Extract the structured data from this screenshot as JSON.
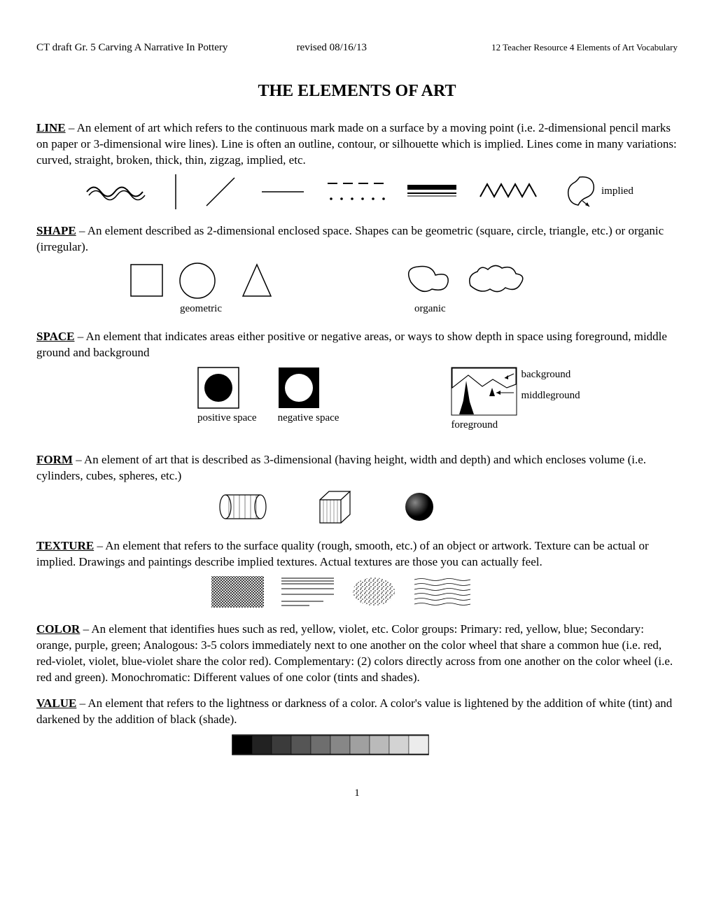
{
  "header": {
    "left": "CT draft Gr. 5 Carving A Narrative In Pottery",
    "mid": "revised 08/16/13",
    "right": "12 Teacher Resource 4 Elements of Art Vocabulary"
  },
  "title": "THE ELEMENTS OF ART",
  "line": {
    "term": "LINE",
    "def": " – An element of art which refers to the continuous mark made on a surface by a moving point (i.e. 2-dimensional pencil marks on paper or 3-dimensional wire lines).  Line is often an outline, contour, or silhouette which is implied.  Lines come in many variations: curved, straight, broken, thick, thin, zigzag, implied, etc.",
    "implied_label": "implied"
  },
  "shape": {
    "term": "SHAPE",
    "def": " – An element described as 2-dimensional enclosed space.  Shapes can be geometric (square, circle,  triangle, etc.) or organic (irregular).",
    "geometric_label": "geometric",
    "organic_label": "organic"
  },
  "space": {
    "term": "SPACE",
    "def": " – An element that indicates areas either positive or negative areas, or ways to show depth in space using foreground, middle ground and background",
    "positive_label": "positive space",
    "negative_label": "negative space",
    "foreground_label": "foreground",
    "middleground_label": "middleground",
    "background_label": "background"
  },
  "form": {
    "term": "FORM",
    "def": " – An element of art that is described as 3-dimensional (having height, width and depth) and which encloses volume (i.e. cylinders, cubes, spheres, etc.)"
  },
  "texture": {
    "term": "TEXTURE",
    "def": " – An element that refers to the surface quality (rough, smooth, etc.) of an object or artwork.  Texture can be actual or implied.  Drawings and paintings describe implied textures.  Actual textures are those you can actually feel."
  },
  "color": {
    "term": "COLOR",
    "def": " – An element that identifies hues such as red, yellow, violet, etc.  Color groups: Primary: red, yellow, blue; Secondary: orange, purple, green; Analogous: 3-5 colors immediately next to one another on the color wheel that share a common hue (i.e. red, red-violet, violet, blue-violet share the color red).  Complementary: (2) colors directly across from one another on the color wheel (i.e. red and green).  Monochromatic: Different values of one color (tints and shades)."
  },
  "value": {
    "term": "VALUE",
    "def": " – An element that refers to the lightness or darkness of a color.  A color's value is lightened by the addition of white (tint) and darkened by the addition of black (shade).",
    "gradient_steps": 10,
    "gradient_colors": [
      "#000000",
      "#222222",
      "#3b3b3b",
      "#555555",
      "#6e6e6e",
      "#878787",
      "#a0a0a0",
      "#bababa",
      "#d3d3d3",
      "#ececec"
    ]
  },
  "page_number": "1",
  "colors": {
    "text": "#000000",
    "bg": "#ffffff",
    "stroke": "#000000"
  }
}
